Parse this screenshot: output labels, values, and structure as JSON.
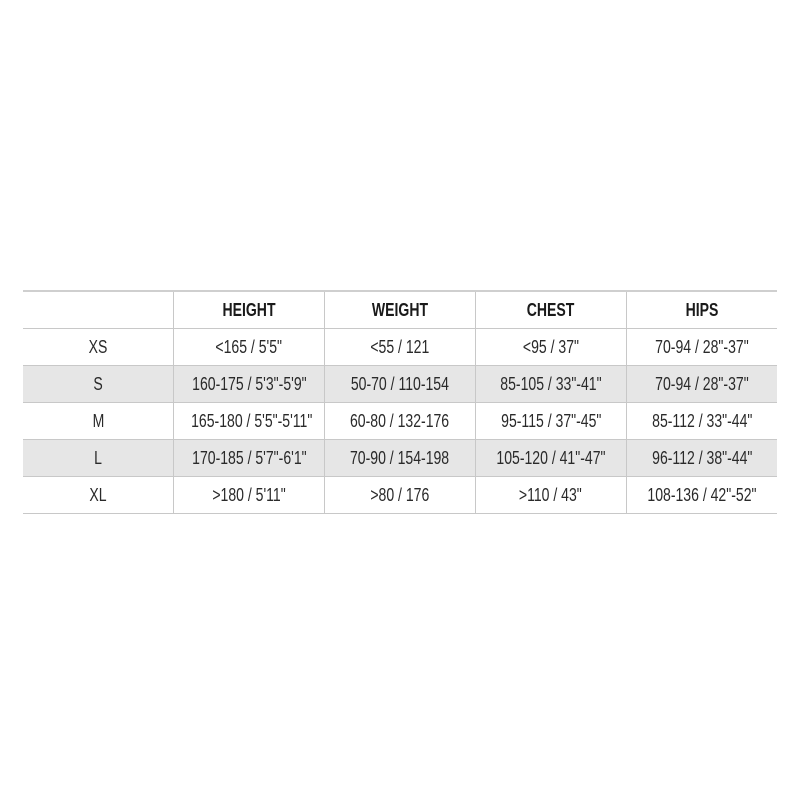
{
  "table": {
    "headers": [
      "",
      "HEIGHT",
      "WEIGHT",
      "CHEST",
      "HIPS"
    ],
    "rows": [
      [
        "XS",
        "<165 / 5'5\"",
        "<55 / 121",
        "<95 / 37\"",
        "70-94 / 28\"-37\""
      ],
      [
        "S",
        "160-175 / 5'3\"-5'9\"",
        "50-70 / 110-154",
        "85-105 / 33\"-41\"",
        "70-94 / 28\"-37\""
      ],
      [
        "M",
        "165-180 / 5'5\"-5'11\"",
        "60-80 / 132-176",
        "95-115 / 37\"-45\"",
        "85-112 / 33\"-44\""
      ],
      [
        "L",
        "170-185 / 5'7\"-6'1\"",
        "70-90 / 154-198",
        "105-120 / 41\"-47\"",
        "96-112 / 38\"-44\""
      ],
      [
        "XL",
        ">180 / 5'11\"",
        ">80 / 176",
        ">110 / 43\"",
        "108-136 / 42\"-52\""
      ]
    ]
  },
  "colors": {
    "shaded_row": "#e6e6e6",
    "grid": "#c8c8c8"
  }
}
